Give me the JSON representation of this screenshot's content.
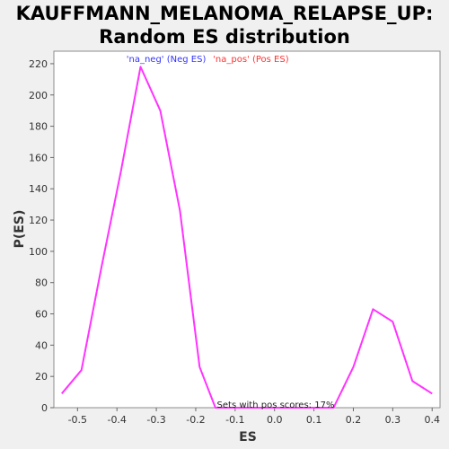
{
  "chart_data": {
    "type": "line",
    "title": [
      "KAUFFMANN_MELANOMA_RELAPSE_UP:",
      "Random ES distribution"
    ],
    "xlabel": "ES",
    "ylabel": "P(ES)",
    "xlim": [
      -0.56,
      0.42
    ],
    "ylim": [
      0,
      228
    ],
    "x_ticks": [
      -0.5,
      -0.4,
      -0.3,
      -0.2,
      -0.1,
      0.0,
      0.1,
      0.2,
      0.3,
      0.4
    ],
    "x_tick_labels": [
      "-0.5",
      "-0.4",
      "-0.3",
      "-0.2",
      "-0.1",
      "0.0",
      "0.1",
      "0.2",
      "0.3",
      "0.4"
    ],
    "y_ticks": [
      0,
      20,
      40,
      60,
      80,
      100,
      120,
      140,
      160,
      180,
      200,
      220
    ],
    "y_tick_labels": [
      "0",
      "20",
      "40",
      "60",
      "80",
      "100",
      "120",
      "140",
      "160",
      "180",
      "200",
      "220"
    ],
    "grid": false,
    "series": [
      {
        "color": "#ff33ff",
        "x": [
          -0.54,
          -0.49,
          -0.44,
          -0.39,
          -0.34,
          -0.29,
          -0.24,
          -0.19,
          -0.15,
          -0.1,
          -0.05,
          0.0,
          0.05,
          0.1,
          0.15,
          0.2,
          0.25,
          0.3,
          0.35,
          0.4
        ],
        "y": [
          9,
          24,
          89,
          151,
          218,
          190,
          126,
          26,
          0,
          0,
          0,
          0,
          0,
          0,
          0,
          26,
          63,
          55,
          17,
          9
        ]
      }
    ],
    "legend": [
      {
        "text": "'na_neg' (Neg ES)",
        "color": "#3333ff"
      },
      {
        "text": "'na_pos' (Pos ES)",
        "color": "#ff3333"
      }
    ],
    "annotation": "Sets with pos scores: 17%"
  }
}
